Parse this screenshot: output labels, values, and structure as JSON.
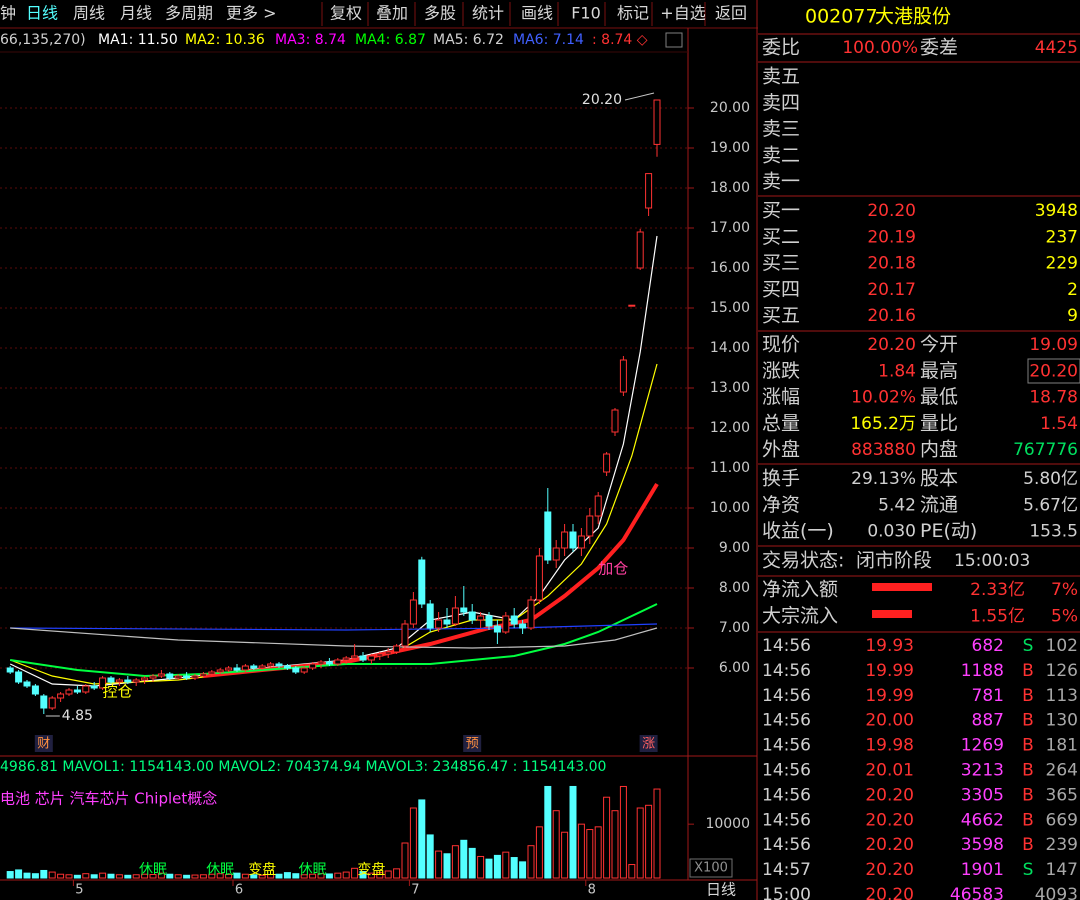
{
  "toolbar": {
    "periods": [
      "钟",
      "日线",
      "周线",
      "月线",
      "多周期",
      "更多 >"
    ],
    "active": 1,
    "buttons": [
      "复权",
      "叠加",
      "多股",
      "统计",
      "画线",
      "F10",
      "标记",
      "+自选",
      "返回"
    ]
  },
  "chart_data": {
    "type": "candlestick",
    "ma_header": [
      {
        "text": "66,135,270)",
        "color": "#d0d0d0"
      },
      {
        "text": "MA1: 11.50",
        "color": "#ffffff"
      },
      {
        "text": "MA2: 10.36",
        "color": "#ffff00"
      },
      {
        "text": "MA3: 8.74",
        "color": "#ff00ff"
      },
      {
        "text": "MA4: 6.87",
        "color": "#00ff00"
      },
      {
        "text": "MA5: 6.72",
        "color": "#d0d0d0"
      },
      {
        "text": "MA6: 7.14",
        "color": "#4060ff"
      },
      {
        "text": ": 8.74 ◇",
        "color": "#ff3232"
      }
    ],
    "up_color": "#ff3232",
    "down_color": "#54ffff",
    "ylim": [
      3.9,
      21.95
    ],
    "yticks": [
      {
        "value": 6,
        "label": "6.00"
      },
      {
        "value": 7,
        "label": "7.00"
      },
      {
        "value": 8,
        "label": "8.00"
      },
      {
        "value": 9,
        "label": "9.00"
      },
      {
        "value": 10,
        "label": "10.00"
      },
      {
        "value": 11,
        "label": "11.00"
      },
      {
        "value": 12,
        "label": "12.00"
      },
      {
        "value": 13,
        "label": "13.00"
      },
      {
        "value": 14,
        "label": "14.00"
      },
      {
        "value": 15,
        "label": "15.00"
      },
      {
        "value": 16,
        "label": "16.00"
      },
      {
        "value": 17,
        "label": "17.00"
      },
      {
        "value": 18,
        "label": "18.00"
      },
      {
        "value": 19,
        "label": "19.00"
      },
      {
        "value": 20,
        "label": "20.00"
      }
    ],
    "grid": true,
    "candles": [
      [
        6.0,
        6.05,
        5.85,
        5.9
      ],
      [
        5.9,
        5.95,
        5.6,
        5.65
      ],
      [
        5.65,
        5.7,
        5.5,
        5.55
      ],
      [
        5.55,
        5.6,
        5.3,
        5.35
      ],
      [
        5.3,
        5.35,
        4.85,
        5.0
      ],
      [
        5.0,
        5.3,
        4.95,
        5.25
      ],
      [
        5.25,
        5.4,
        5.15,
        5.35
      ],
      [
        5.35,
        5.5,
        5.3,
        5.45
      ],
      [
        5.45,
        5.55,
        5.35,
        5.4
      ],
      [
        5.4,
        5.6,
        5.35,
        5.55
      ],
      [
        5.55,
        5.65,
        5.45,
        5.5
      ],
      [
        5.5,
        5.8,
        5.45,
        5.75
      ],
      [
        5.75,
        5.8,
        5.6,
        5.65
      ],
      [
        5.65,
        5.75,
        5.55,
        5.7
      ],
      [
        5.7,
        5.8,
        5.6,
        5.65
      ],
      [
        5.65,
        5.75,
        5.55,
        5.7
      ],
      [
        5.7,
        5.8,
        5.6,
        5.75
      ],
      [
        5.75,
        5.85,
        5.65,
        5.8
      ],
      [
        5.8,
        5.95,
        5.75,
        5.85
      ],
      [
        5.85,
        5.9,
        5.7,
        5.75
      ],
      [
        5.75,
        5.85,
        5.7,
        5.8
      ],
      [
        5.8,
        5.9,
        5.7,
        5.75
      ],
      [
        5.75,
        5.85,
        5.7,
        5.8
      ],
      [
        5.8,
        5.9,
        5.75,
        5.85
      ],
      [
        5.85,
        5.95,
        5.8,
        5.9
      ],
      [
        5.9,
        6.0,
        5.85,
        5.95
      ],
      [
        5.95,
        6.05,
        5.9,
        6.0
      ],
      [
        6.0,
        6.1,
        5.9,
        5.95
      ],
      [
        5.95,
        6.1,
        5.9,
        6.05
      ],
      [
        6.05,
        6.1,
        5.95,
        6.0
      ],
      [
        6.0,
        6.1,
        5.95,
        6.05
      ],
      [
        6.05,
        6.15,
        6.0,
        6.1
      ],
      [
        6.1,
        6.15,
        6.0,
        6.05
      ],
      [
        6.05,
        6.1,
        5.95,
        6.0
      ],
      [
        6.0,
        6.05,
        5.85,
        5.9
      ],
      [
        5.9,
        6.05,
        5.85,
        6.0
      ],
      [
        6.0,
        6.15,
        5.95,
        6.1
      ],
      [
        6.1,
        6.2,
        6.0,
        6.15
      ],
      [
        6.15,
        6.25,
        6.05,
        6.1
      ],
      [
        6.1,
        6.25,
        6.05,
        6.2
      ],
      [
        6.2,
        6.3,
        6.1,
        6.25
      ],
      [
        6.25,
        6.6,
        6.2,
        6.3
      ],
      [
        6.3,
        6.4,
        6.15,
        6.2
      ],
      [
        6.2,
        6.35,
        6.1,
        6.3
      ],
      [
        6.3,
        6.4,
        6.2,
        6.35
      ],
      [
        6.35,
        6.5,
        6.25,
        6.4
      ],
      [
        6.4,
        6.6,
        6.35,
        6.55
      ],
      [
        6.55,
        7.2,
        6.5,
        7.1
      ],
      [
        7.1,
        7.9,
        7.0,
        7.7
      ],
      [
        8.7,
        8.78,
        7.5,
        7.6
      ],
      [
        7.6,
        7.7,
        6.9,
        7.0
      ],
      [
        7.0,
        7.4,
        6.9,
        7.2
      ],
      [
        7.2,
        7.5,
        7.0,
        7.1
      ],
      [
        7.1,
        7.8,
        7.05,
        7.5
      ],
      [
        7.5,
        8.05,
        7.3,
        7.4
      ],
      [
        7.4,
        7.6,
        7.1,
        7.2
      ],
      [
        7.2,
        7.4,
        7.0,
        7.3
      ],
      [
        7.3,
        7.4,
        6.95,
        7.05
      ],
      [
        7.05,
        7.2,
        6.6,
        6.9
      ],
      [
        6.9,
        7.4,
        6.85,
        7.3
      ],
      [
        7.3,
        7.5,
        7.0,
        7.1
      ],
      [
        7.1,
        7.2,
        6.85,
        7.0
      ],
      [
        7.0,
        7.8,
        6.95,
        7.7
      ],
      [
        7.7,
        9.0,
        7.6,
        8.8
      ],
      [
        9.9,
        10.5,
        8.6,
        8.7
      ],
      [
        8.7,
        9.2,
        8.5,
        9.0
      ],
      [
        9.0,
        9.6,
        8.8,
        9.4
      ],
      [
        9.4,
        9.6,
        8.9,
        9.0
      ],
      [
        9.0,
        9.5,
        8.8,
        9.3
      ],
      [
        9.3,
        10.0,
        9.1,
        9.8
      ],
      [
        9.8,
        10.4,
        9.6,
        10.3
      ],
      [
        10.9,
        11.4,
        10.8,
        11.35
      ],
      [
        11.9,
        12.5,
        11.8,
        12.45
      ],
      [
        12.9,
        13.8,
        12.8,
        13.7
      ],
      [
        15.07,
        15.07,
        15.07,
        15.07
      ],
      [
        16.0,
        16.98,
        15.95,
        16.9
      ],
      [
        17.5,
        18.36,
        17.3,
        18.36
      ],
      [
        19.09,
        20.2,
        18.78,
        20.2
      ]
    ],
    "ma_lines": [
      {
        "color": "#ffffff",
        "width": 1.2,
        "x": [
          0,
          5,
          10,
          20,
          30,
          40,
          46,
          50,
          55,
          60,
          63,
          66,
          70,
          73,
          75,
          77
        ],
        "values": [
          6.1,
          5.6,
          5.55,
          5.75,
          6.0,
          6.2,
          6.5,
          7.2,
          7.4,
          7.2,
          7.8,
          8.7,
          9.5,
          11.6,
          13.9,
          16.8
        ]
      },
      {
        "color": "#ffff00",
        "width": 1.2,
        "x": [
          0,
          5,
          10,
          20,
          30,
          40,
          46,
          50,
          55,
          60,
          64,
          68,
          71,
          74,
          77
        ],
        "values": [
          6.2,
          5.8,
          5.6,
          5.7,
          5.95,
          6.15,
          6.4,
          6.9,
          7.2,
          7.2,
          7.8,
          8.6,
          9.6,
          11.3,
          13.6
        ]
      },
      {
        "color": "#ff2020",
        "width": 4,
        "x": [
          23,
          30,
          40,
          50,
          57,
          62,
          66,
          70,
          73,
          77
        ],
        "values": [
          5.8,
          5.95,
          6.15,
          6.6,
          7.0,
          7.2,
          7.8,
          8.5,
          9.2,
          10.6
        ]
      },
      {
        "color": "#00ff40",
        "width": 2,
        "x": [
          0,
          8,
          16,
          23,
          30,
          40,
          50,
          60,
          66,
          70,
          74,
          77
        ],
        "values": [
          6.2,
          5.95,
          5.8,
          5.85,
          5.95,
          6.1,
          6.1,
          6.3,
          6.6,
          6.9,
          7.3,
          7.6
        ]
      },
      {
        "color": "#2040ff",
        "width": 1.2,
        "x": [
          0,
          40,
          60,
          77
        ],
        "values": [
          7.0,
          6.95,
          7.0,
          7.1
        ]
      },
      {
        "color": "#c0c0c0",
        "width": 1.2,
        "x": [
          0,
          20,
          40,
          55,
          66,
          72,
          77
        ],
        "values": [
          7.0,
          6.7,
          6.55,
          6.5,
          6.55,
          6.7,
          7.0
        ]
      }
    ],
    "annotations": [
      {
        "candle": 77,
        "value": 20.2,
        "label": "20.20"
      },
      {
        "candle": 4,
        "value": 4.85,
        "label": "4.85"
      }
    ],
    "signals": [
      {
        "candle": 11,
        "value": 5.4,
        "label": "控仓",
        "color": "#ffff00"
      },
      {
        "candle": 70,
        "value": 8.48,
        "label": "加仓",
        "color": "#ff40a0"
      }
    ],
    "events": [
      {
        "candle": 4,
        "label": "财"
      },
      {
        "candle": 55,
        "label": "预"
      },
      {
        "candle": 76,
        "label": "涨"
      }
    ],
    "months": [
      {
        "candle": 8,
        "label": "5"
      },
      {
        "candle": 27,
        "label": "6"
      },
      {
        "candle": 48,
        "label": "7"
      },
      {
        "candle": 69,
        "label": "8"
      }
    ],
    "volume": {
      "header": "4986.81  MAVOL1: 1154143.00  MAVOL2: 704374.94  MAVOL3: 234856.47  : 1154143.00",
      "concepts": "电池 芯片 汽车芯片 Chiplet概念",
      "unit": "X100",
      "ylim": [
        0,
        19500
      ],
      "yticks": [
        10000
      ],
      "values": [
        1200,
        1500,
        900,
        800,
        1400,
        1100,
        700,
        600,
        500,
        800,
        600,
        900,
        700,
        600,
        500,
        600,
        700,
        650,
        900,
        700,
        600,
        500,
        550,
        600,
        700,
        800,
        650,
        900,
        700,
        600,
        500,
        650,
        700,
        1000,
        800,
        600,
        700,
        800,
        750,
        900,
        1100,
        1800,
        1200,
        900,
        1000,
        1300,
        1700,
        6500,
        13000,
        14500,
        8000,
        5000,
        4500,
        6000,
        7000,
        5500,
        4000,
        3500,
        4200,
        4800,
        3800,
        3000,
        6000,
        9500,
        17000,
        12500,
        8500,
        17000,
        10000,
        9000,
        9500,
        15000,
        12500,
        17000,
        2500,
        13000,
        13500,
        16520
      ],
      "signals": [
        {
          "candle": 17,
          "label": "休眠",
          "color": "#00ff40"
        },
        {
          "candle": 25,
          "label": "休眠",
          "color": "#00ff40"
        },
        {
          "candle": 30,
          "label": "变盘",
          "color": "#ffff00"
        },
        {
          "candle": 36,
          "label": "休眠",
          "color": "#00ff40"
        },
        {
          "candle": 43,
          "label": "变盘",
          "color": "#ffff00"
        }
      ]
    },
    "period_button": "日线"
  },
  "quote": {
    "code": "002077",
    "name": "大港股份",
    "ratio": [
      "委比",
      "100.00%",
      "委差",
      "4425"
    ],
    "sell": [
      "卖五",
      "卖四",
      "卖三",
      "卖二",
      "卖一"
    ],
    "buy": [
      [
        "买一",
        "20.20",
        "3948"
      ],
      [
        "买二",
        "20.19",
        "237"
      ],
      [
        "买三",
        "20.18",
        "229"
      ],
      [
        "买四",
        "20.17",
        "2"
      ],
      [
        "买五",
        "20.16",
        "9"
      ]
    ],
    "stats": [
      [
        "现价",
        "20.20",
        "今开",
        "19.09"
      ],
      [
        "涨跌",
        "1.84",
        "最高",
        "20.20"
      ],
      [
        "涨幅",
        "10.02%",
        "最低",
        "18.78"
      ],
      [
        "总量",
        "165.2万",
        "量比",
        "1.54"
      ],
      [
        "外盘",
        "883880",
        "内盘",
        "767776"
      ]
    ],
    "stats2": [
      [
        "换手",
        "29.13%",
        "股本",
        "5.80亿"
      ],
      [
        "净资",
        "5.42",
        "流通",
        "5.67亿"
      ],
      [
        "收益(一)",
        "0.030",
        "PE(动)",
        "153.5"
      ]
    ],
    "status": [
      "交易状态:",
      "闭市阶段",
      "15:00:03"
    ],
    "flows": [
      [
        "净流入额",
        "2.33亿",
        "7%"
      ],
      [
        "大宗流入",
        "1.55亿",
        "5%"
      ]
    ],
    "ticks": [
      [
        "14:56",
        "19.93",
        "682",
        "S",
        "102"
      ],
      [
        "14:56",
        "19.99",
        "1188",
        "B",
        "126"
      ],
      [
        "14:56",
        "19.99",
        "781",
        "B",
        "113"
      ],
      [
        "14:56",
        "20.00",
        "887",
        "B",
        "130"
      ],
      [
        "14:56",
        "19.98",
        "1269",
        "B",
        "181"
      ],
      [
        "14:56",
        "20.01",
        "3213",
        "B",
        "264"
      ],
      [
        "14:56",
        "20.20",
        "3305",
        "B",
        "365"
      ],
      [
        "14:56",
        "20.20",
        "4662",
        "B",
        "669"
      ],
      [
        "14:56",
        "20.20",
        "3598",
        "B",
        "239"
      ],
      [
        "14:57",
        "20.20",
        "1901",
        "S",
        "147"
      ],
      [
        "15:00",
        "20.20",
        "46583",
        "4093"
      ]
    ]
  }
}
